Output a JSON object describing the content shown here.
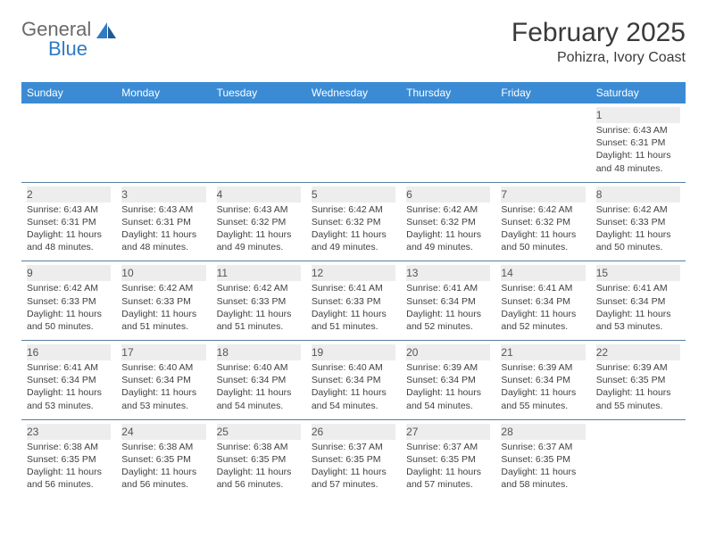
{
  "brand": {
    "word1": "General",
    "word2": "Blue"
  },
  "title": "February 2025",
  "location": "Pohizra, Ivory Coast",
  "colors": {
    "header_bg": "#3b8bd4",
    "header_text": "#ffffff",
    "daynum_bg": "#ededed",
    "text": "#414141",
    "rule": "#5a7ea0",
    "brand_gray": "#6a6a6a",
    "brand_blue": "#2f7bc4"
  },
  "day_names": [
    "Sunday",
    "Monday",
    "Tuesday",
    "Wednesday",
    "Thursday",
    "Friday",
    "Saturday"
  ],
  "weeks": [
    [
      {
        "day": "",
        "sunrise": "",
        "sunset": "",
        "daylight": ""
      },
      {
        "day": "",
        "sunrise": "",
        "sunset": "",
        "daylight": ""
      },
      {
        "day": "",
        "sunrise": "",
        "sunset": "",
        "daylight": ""
      },
      {
        "day": "",
        "sunrise": "",
        "sunset": "",
        "daylight": ""
      },
      {
        "day": "",
        "sunrise": "",
        "sunset": "",
        "daylight": ""
      },
      {
        "day": "",
        "sunrise": "",
        "sunset": "",
        "daylight": ""
      },
      {
        "day": "1",
        "sunrise": "Sunrise: 6:43 AM",
        "sunset": "Sunset: 6:31 PM",
        "daylight": "Daylight: 11 hours and 48 minutes."
      }
    ],
    [
      {
        "day": "2",
        "sunrise": "Sunrise: 6:43 AM",
        "sunset": "Sunset: 6:31 PM",
        "daylight": "Daylight: 11 hours and 48 minutes."
      },
      {
        "day": "3",
        "sunrise": "Sunrise: 6:43 AM",
        "sunset": "Sunset: 6:31 PM",
        "daylight": "Daylight: 11 hours and 48 minutes."
      },
      {
        "day": "4",
        "sunrise": "Sunrise: 6:43 AM",
        "sunset": "Sunset: 6:32 PM",
        "daylight": "Daylight: 11 hours and 49 minutes."
      },
      {
        "day": "5",
        "sunrise": "Sunrise: 6:42 AM",
        "sunset": "Sunset: 6:32 PM",
        "daylight": "Daylight: 11 hours and 49 minutes."
      },
      {
        "day": "6",
        "sunrise": "Sunrise: 6:42 AM",
        "sunset": "Sunset: 6:32 PM",
        "daylight": "Daylight: 11 hours and 49 minutes."
      },
      {
        "day": "7",
        "sunrise": "Sunrise: 6:42 AM",
        "sunset": "Sunset: 6:32 PM",
        "daylight": "Daylight: 11 hours and 50 minutes."
      },
      {
        "day": "8",
        "sunrise": "Sunrise: 6:42 AM",
        "sunset": "Sunset: 6:33 PM",
        "daylight": "Daylight: 11 hours and 50 minutes."
      }
    ],
    [
      {
        "day": "9",
        "sunrise": "Sunrise: 6:42 AM",
        "sunset": "Sunset: 6:33 PM",
        "daylight": "Daylight: 11 hours and 50 minutes."
      },
      {
        "day": "10",
        "sunrise": "Sunrise: 6:42 AM",
        "sunset": "Sunset: 6:33 PM",
        "daylight": "Daylight: 11 hours and 51 minutes."
      },
      {
        "day": "11",
        "sunrise": "Sunrise: 6:42 AM",
        "sunset": "Sunset: 6:33 PM",
        "daylight": "Daylight: 11 hours and 51 minutes."
      },
      {
        "day": "12",
        "sunrise": "Sunrise: 6:41 AM",
        "sunset": "Sunset: 6:33 PM",
        "daylight": "Daylight: 11 hours and 51 minutes."
      },
      {
        "day": "13",
        "sunrise": "Sunrise: 6:41 AM",
        "sunset": "Sunset: 6:34 PM",
        "daylight": "Daylight: 11 hours and 52 minutes."
      },
      {
        "day": "14",
        "sunrise": "Sunrise: 6:41 AM",
        "sunset": "Sunset: 6:34 PM",
        "daylight": "Daylight: 11 hours and 52 minutes."
      },
      {
        "day": "15",
        "sunrise": "Sunrise: 6:41 AM",
        "sunset": "Sunset: 6:34 PM",
        "daylight": "Daylight: 11 hours and 53 minutes."
      }
    ],
    [
      {
        "day": "16",
        "sunrise": "Sunrise: 6:41 AM",
        "sunset": "Sunset: 6:34 PM",
        "daylight": "Daylight: 11 hours and 53 minutes."
      },
      {
        "day": "17",
        "sunrise": "Sunrise: 6:40 AM",
        "sunset": "Sunset: 6:34 PM",
        "daylight": "Daylight: 11 hours and 53 minutes."
      },
      {
        "day": "18",
        "sunrise": "Sunrise: 6:40 AM",
        "sunset": "Sunset: 6:34 PM",
        "daylight": "Daylight: 11 hours and 54 minutes."
      },
      {
        "day": "19",
        "sunrise": "Sunrise: 6:40 AM",
        "sunset": "Sunset: 6:34 PM",
        "daylight": "Daylight: 11 hours and 54 minutes."
      },
      {
        "day": "20",
        "sunrise": "Sunrise: 6:39 AM",
        "sunset": "Sunset: 6:34 PM",
        "daylight": "Daylight: 11 hours and 54 minutes."
      },
      {
        "day": "21",
        "sunrise": "Sunrise: 6:39 AM",
        "sunset": "Sunset: 6:34 PM",
        "daylight": "Daylight: 11 hours and 55 minutes."
      },
      {
        "day": "22",
        "sunrise": "Sunrise: 6:39 AM",
        "sunset": "Sunset: 6:35 PM",
        "daylight": "Daylight: 11 hours and 55 minutes."
      }
    ],
    [
      {
        "day": "23",
        "sunrise": "Sunrise: 6:38 AM",
        "sunset": "Sunset: 6:35 PM",
        "daylight": "Daylight: 11 hours and 56 minutes."
      },
      {
        "day": "24",
        "sunrise": "Sunrise: 6:38 AM",
        "sunset": "Sunset: 6:35 PM",
        "daylight": "Daylight: 11 hours and 56 minutes."
      },
      {
        "day": "25",
        "sunrise": "Sunrise: 6:38 AM",
        "sunset": "Sunset: 6:35 PM",
        "daylight": "Daylight: 11 hours and 56 minutes."
      },
      {
        "day": "26",
        "sunrise": "Sunrise: 6:37 AM",
        "sunset": "Sunset: 6:35 PM",
        "daylight": "Daylight: 11 hours and 57 minutes."
      },
      {
        "day": "27",
        "sunrise": "Sunrise: 6:37 AM",
        "sunset": "Sunset: 6:35 PM",
        "daylight": "Daylight: 11 hours and 57 minutes."
      },
      {
        "day": "28",
        "sunrise": "Sunrise: 6:37 AM",
        "sunset": "Sunset: 6:35 PM",
        "daylight": "Daylight: 11 hours and 58 minutes."
      },
      {
        "day": "",
        "sunrise": "",
        "sunset": "",
        "daylight": ""
      }
    ]
  ]
}
